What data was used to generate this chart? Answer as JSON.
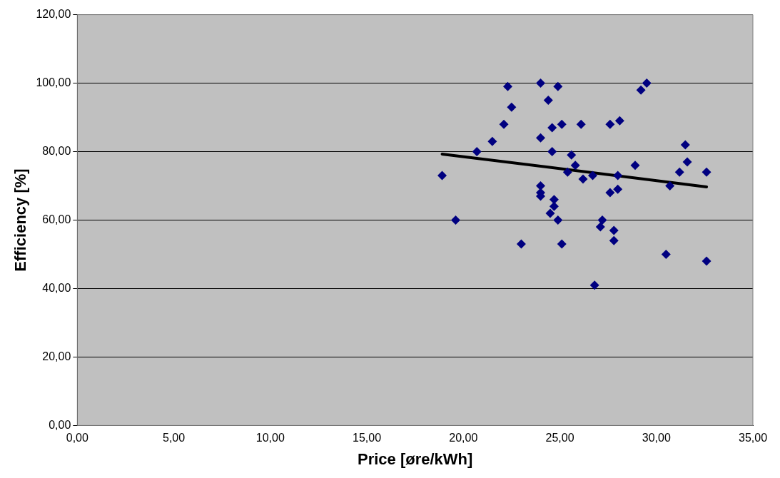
{
  "chart_data": {
    "type": "scatter",
    "xlabel": "Price [øre/kWh]",
    "ylabel": "Efficiency [%]",
    "xlim": [
      0,
      35
    ],
    "ylim": [
      0,
      120
    ],
    "xticks": [
      {
        "value": 0,
        "label": "0,00"
      },
      {
        "value": 5,
        "label": "5,00"
      },
      {
        "value": 10,
        "label": "10,00"
      },
      {
        "value": 15,
        "label": "15,00"
      },
      {
        "value": 20,
        "label": "20,00"
      },
      {
        "value": 25,
        "label": "25,00"
      },
      {
        "value": 30,
        "label": "30,00"
      },
      {
        "value": 35,
        "label": "35,00"
      }
    ],
    "yticks": [
      {
        "value": 0,
        "label": "0,00"
      },
      {
        "value": 20,
        "label": "20,00"
      },
      {
        "value": 40,
        "label": "40,00"
      },
      {
        "value": 60,
        "label": "60,00"
      },
      {
        "value": 80,
        "label": "80,00"
      },
      {
        "value": 100,
        "label": "100,00"
      },
      {
        "value": 120,
        "label": "120,00"
      }
    ],
    "grid": "y",
    "legend": false,
    "marker": "diamond",
    "series": [
      {
        "color": "#000080",
        "x": [
          18.9,
          19.6,
          20.7,
          21.5,
          22.1,
          22.3,
          22.5,
          23.0,
          24.0,
          24.0,
          24.0,
          24.0,
          24.0,
          24.4,
          24.6,
          24.6,
          24.5,
          24.7,
          24.7,
          24.9,
          24.9,
          25.1,
          25.1,
          25.4,
          25.6,
          25.8,
          26.1,
          26.2,
          26.7,
          26.8,
          27.1,
          27.2,
          27.6,
          27.6,
          27.8,
          27.8,
          28.0,
          28.0,
          28.1,
          28.9,
          29.2,
          29.5,
          30.5,
          30.7,
          31.2,
          31.5,
          31.6,
          32.6,
          32.6
        ],
        "values": [
          73,
          60,
          80,
          83,
          88,
          99,
          93,
          53,
          100,
          84,
          70,
          68,
          67,
          95,
          87,
          80,
          62,
          64,
          66,
          99,
          60,
          88,
          53,
          74,
          79,
          76,
          88,
          72,
          73,
          41,
          58,
          60,
          88,
          68,
          57,
          54,
          69,
          73,
          89,
          76,
          98,
          100,
          50,
          70,
          74,
          82,
          77,
          74,
          48
        ]
      },
      {
        "type": "line",
        "color": "#000000",
        "marker": "none",
        "line_style": "solid",
        "x": [
          18.9,
          32.6
        ],
        "values": [
          79.3,
          69.7
        ]
      }
    ]
  }
}
